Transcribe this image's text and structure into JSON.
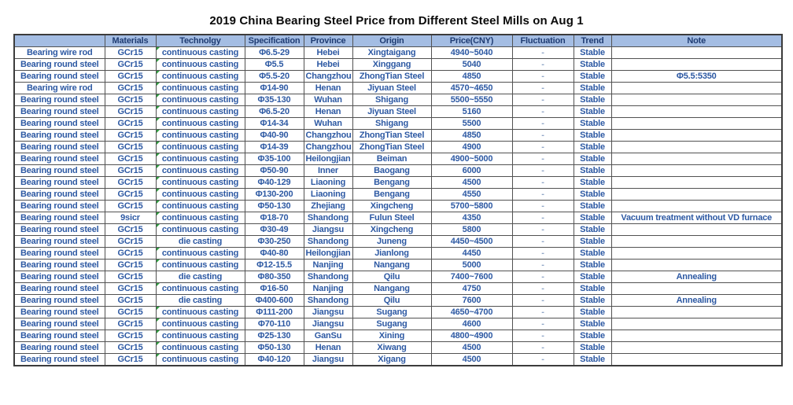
{
  "title": "2019 China Bearing Steel Price from Different Steel Mills on Aug 1",
  "colors": {
    "header_bg": "#A4BDE3",
    "header_text": "#1F3C73",
    "data_text": "#2D59A3",
    "dash_text": "#8FA5C6",
    "flag_green": "#2F9E3F",
    "border": "#525252"
  },
  "chart_data": {
    "type": "table",
    "title": "2019 China Bearing Steel Price from Different Steel Mills on Aug 1",
    "columns": [
      "",
      "Materials",
      "Technolgy",
      "Specification",
      "Province",
      "Origin",
      "Price(CNY)",
      "Fluctuation",
      "Trend",
      "Note"
    ],
    "rows": [
      [
        "Bearing wire rod",
        "GCr15",
        "continuous casting",
        "Φ6.5-29",
        "Hebei",
        "Xingtaigang",
        "4940~5040",
        "-",
        "Stable",
        ""
      ],
      [
        "Bearing round steel",
        "GCr15",
        "continuous casting",
        "Φ5.5",
        "Hebei",
        "Xinggang",
        "5040",
        "-",
        "Stable",
        ""
      ],
      [
        "Bearing round steel",
        "GCr15",
        "continuous casting",
        "Φ5.5-20",
        "Changzhou",
        "ZhongTian Steel",
        "4850",
        "-",
        "Stable",
        "Φ5.5:5350"
      ],
      [
        "Bearing wire rod",
        "GCr15",
        "continuous casting",
        "Φ14-90",
        "Henan",
        "Jiyuan Steel",
        "4570~4650",
        "-",
        "Stable",
        ""
      ],
      [
        "Bearing round steel",
        "GCr15",
        "continuous casting",
        "Φ35-130",
        "Wuhan",
        "Shigang",
        "5500~5550",
        "-",
        "Stable",
        ""
      ],
      [
        "Bearing round steel",
        "GCr15",
        "continuous casting",
        "Φ6.5-20",
        "Henan",
        "Jiyuan Steel",
        "5160",
        "-",
        "Stable",
        ""
      ],
      [
        "Bearing round steel",
        "GCr15",
        "continuous casting",
        "Φ14-34",
        "Wuhan",
        "Shigang",
        "5500",
        "-",
        "Stable",
        ""
      ],
      [
        "Bearing round steel",
        "GCr15",
        "continuous casting",
        "Φ40-90",
        "Changzhou",
        "ZhongTian Steel",
        "4850",
        "-",
        "Stable",
        ""
      ],
      [
        "Bearing round steel",
        "GCr15",
        "continuous casting",
        "Φ14-39",
        "Changzhou",
        "ZhongTian Steel",
        "4900",
        "-",
        "Stable",
        ""
      ],
      [
        "Bearing round steel",
        "GCr15",
        "continuous casting",
        "Φ35-100",
        "Heilongjian",
        "Beiman",
        "4900~5000",
        "-",
        "Stable",
        ""
      ],
      [
        "Bearing round steel",
        "GCr15",
        "continuous casting",
        "Φ50-90",
        "Inner",
        "Baogang",
        "6000",
        "-",
        "Stable",
        ""
      ],
      [
        "Bearing round steel",
        "GCr15",
        "continuous casting",
        "Φ40-129",
        "Liaoning",
        "Bengang",
        "4500",
        "-",
        "Stable",
        ""
      ],
      [
        "Bearing round steel",
        "GCr15",
        "continuous casting",
        "Φ130-200",
        "Liaoning",
        "Bengang",
        "4550",
        "-",
        "Stable",
        ""
      ],
      [
        "Bearing round steel",
        "GCr15",
        "continuous casting",
        "Φ50-130",
        "Zhejiang",
        "Xingcheng",
        "5700~5800",
        "-",
        "Stable",
        ""
      ],
      [
        "Bearing round steel",
        "9sicr",
        "continuous casting",
        "Φ18-70",
        "Shandong",
        "Fulun Steel",
        "4350",
        "-",
        "Stable",
        "Vacuum treatment without VD furnace"
      ],
      [
        "Bearing round steel",
        "GCr15",
        "continuous casting",
        "Φ30-49",
        "Jiangsu",
        "Xingcheng",
        "5800",
        "-",
        "Stable",
        ""
      ],
      [
        "Bearing round steel",
        "GCr15",
        "die casting",
        "Φ30-250",
        "Shandong",
        "Juneng",
        "4450~4500",
        "-",
        "Stable",
        ""
      ],
      [
        "Bearing round steel",
        "GCr15",
        "continuous casting",
        "Φ40-80",
        "Heilongjian",
        "Jianlong",
        "4450",
        "-",
        "Stable",
        ""
      ],
      [
        "Bearing round steel",
        "GCr15",
        "continuous casting",
        "Φ12-15.5",
        "Nanjing",
        "Nangang",
        "5000",
        "-",
        "Stable",
        ""
      ],
      [
        "Bearing round steel",
        "GCr15",
        "die casting",
        "Φ80-350",
        "Shandong",
        "Qilu",
        "7400~7600",
        "-",
        "Stable",
        "Annealing"
      ],
      [
        "Bearing round steel",
        "GCr15",
        "continuous casting",
        "Φ16-50",
        "Nanjing",
        "Nangang",
        "4750",
        "-",
        "Stable",
        ""
      ],
      [
        "Bearing round steel",
        "GCr15",
        "die casting",
        "Φ400-600",
        "Shandong",
        "Qilu",
        "7600",
        "-",
        "Stable",
        "Annealing"
      ],
      [
        "Bearing round steel",
        "GCr15",
        "continuous casting",
        "Φ111-200",
        "Jiangsu",
        "Sugang",
        "4650~4700",
        "-",
        "Stable",
        ""
      ],
      [
        "Bearing round steel",
        "GCr15",
        "continuous casting",
        "Φ70-110",
        "Jiangsu",
        "Sugang",
        "4600",
        "-",
        "Stable",
        ""
      ],
      [
        "Bearing round steel",
        "GCr15",
        "continuous casting",
        "Φ25-130",
        "GanSu",
        "Xining",
        "4800~4900",
        "-",
        "Stable",
        ""
      ],
      [
        "Bearing round steel",
        "GCr15",
        "continuous casting",
        "Φ50-130",
        "Henan",
        "Xiwang",
        "4500",
        "-",
        "Stable",
        ""
      ],
      [
        "Bearing round steel",
        "GCr15",
        "continuous casting",
        "Φ40-120",
        "Jiangsu",
        "Xigang",
        "4500",
        "-",
        "Stable",
        ""
      ]
    ]
  }
}
